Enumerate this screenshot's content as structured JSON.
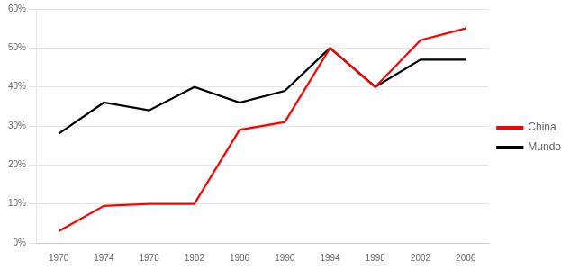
{
  "chart_data": {
    "type": "line",
    "series": [
      {
        "name": "China",
        "color": "#FF0000",
        "x": [
          1970,
          1974,
          1978,
          1982,
          1986,
          1990,
          1994,
          1998,
          2002,
          2006
        ],
        "values": [
          0.03,
          0.095,
          0.1,
          0.1,
          0.29,
          0.31,
          0.5,
          0.4,
          0.52,
          0.55
        ]
      },
      {
        "name": "Mundo",
        "color": "#000000",
        "x": [
          1970,
          1974,
          1978,
          1982,
          1986,
          1990,
          1994,
          1998,
          2002,
          2006
        ],
        "values": [
          0.28,
          0.36,
          0.34,
          0.4,
          0.36,
          0.39,
          0.5,
          0.4,
          0.47,
          0.47
        ]
      }
    ],
    "xlim": [
      1968,
      2008
    ],
    "xticks": [
      1970,
      1974,
      1978,
      1982,
      1986,
      1990,
      1994,
      1998,
      2002,
      2006
    ],
    "ylim": [
      0.0,
      0.6
    ],
    "yticks": [
      {
        "value": 0.0,
        "label": "0%"
      },
      {
        "value": 0.1,
        "label": "10%"
      },
      {
        "value": 0.2,
        "label": "20%"
      },
      {
        "value": 0.3,
        "label": "30%"
      },
      {
        "value": 0.4,
        "label": "40%"
      },
      {
        "value": 0.5,
        "label": "50%"
      },
      {
        "value": 0.6,
        "label": "60%"
      }
    ],
    "grid": "y",
    "legend": "right"
  }
}
